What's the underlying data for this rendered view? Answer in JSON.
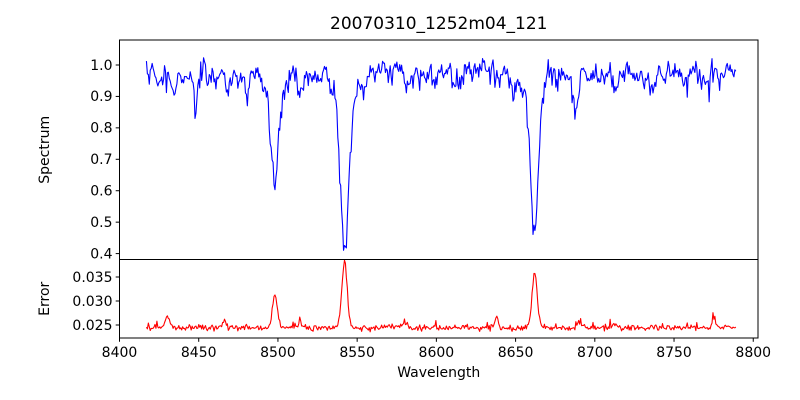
{
  "figure": {
    "background": "#ffffff",
    "axis_color": "#000000",
    "text_color": "#000000"
  },
  "chart_data": {
    "type": "line",
    "title": "20070310_1252m04_121",
    "xlabel": "Wavelength",
    "grid": false,
    "legend": "none",
    "xlim": [
      8400,
      8803
    ],
    "x_data_range": [
      8417,
      8789
    ],
    "xticks": [
      {
        "value": 8400,
        "label": "8400"
      },
      {
        "value": 8450,
        "label": "8450"
      },
      {
        "value": 8500,
        "label": "8500"
      },
      {
        "value": 8550,
        "label": "8550"
      },
      {
        "value": 8600,
        "label": "8600"
      },
      {
        "value": 8650,
        "label": "8650"
      },
      {
        "value": 8700,
        "label": "8700"
      },
      {
        "value": 8750,
        "label": "8750"
      },
      {
        "value": 8800,
        "label": "8800"
      }
    ],
    "n_points": 620,
    "noise_seed": 7,
    "panels": [
      {
        "name": "spectrum",
        "ylabel": "Spectrum",
        "ylim": [
          0.3812,
          1.0795
        ],
        "yticks": [
          {
            "value": 0.4,
            "label": "0.4"
          },
          {
            "value": 0.5,
            "label": "0.5"
          },
          {
            "value": 0.6,
            "label": "0.6"
          },
          {
            "value": 0.7,
            "label": "0.7"
          },
          {
            "value": 0.8,
            "label": "0.8"
          },
          {
            "value": 0.9,
            "label": "0.9"
          },
          {
            "value": 1.0,
            "label": "1.0"
          }
        ],
        "line_color": "#0000ff",
        "continuum": 0.98,
        "noise": {
          "smooth_amp": 0.012,
          "white_amp": 0.008,
          "spike_prob": 0.25,
          "spike_max": 0.05
        },
        "absorption_lines": [
          {
            "center": 8498,
            "depth": 0.3,
            "sigma": 2.0,
            "wing_depth": 0.08,
            "wing_sigma": 5.0
          },
          {
            "center": 8542,
            "depth": 0.44,
            "sigma": 2.3,
            "wing_depth": 0.12,
            "wing_sigma": 6.0
          },
          {
            "center": 8662,
            "depth": 0.41,
            "sigma": 2.2,
            "wing_depth": 0.11,
            "wing_sigma": 5.5
          },
          {
            "center": 8425,
            "depth": 0.04,
            "sigma": 1.2,
            "wing_depth": 0,
            "wing_sigma": 1
          },
          {
            "center": 8434,
            "depth": 0.07,
            "sigma": 1.5,
            "wing_depth": 0,
            "wing_sigma": 1
          },
          {
            "center": 8448,
            "depth": 0.085,
            "sigma": 1.6,
            "wing_depth": 0,
            "wing_sigma": 1
          },
          {
            "center": 8468,
            "depth": 0.05,
            "sigma": 1.3,
            "wing_depth": 0,
            "wing_sigma": 1
          },
          {
            "center": 8481,
            "depth": 0.045,
            "sigma": 1.2,
            "wing_depth": 0,
            "wing_sigma": 1
          },
          {
            "center": 8514,
            "depth": 0.08,
            "sigma": 1.5,
            "wing_depth": 0,
            "wing_sigma": 1
          },
          {
            "center": 8582,
            "depth": 0.045,
            "sigma": 1.2,
            "wing_depth": 0,
            "wing_sigma": 1
          },
          {
            "center": 8599,
            "depth": 0.05,
            "sigma": 1.3,
            "wing_depth": 0,
            "wing_sigma": 1
          },
          {
            "center": 8611,
            "depth": 0.055,
            "sigma": 1.3,
            "wing_depth": 0,
            "wing_sigma": 1
          },
          {
            "center": 8648,
            "depth": 0.045,
            "sigma": 1.2,
            "wing_depth": 0,
            "wing_sigma": 1
          },
          {
            "center": 8688,
            "depth": 0.115,
            "sigma": 1.7,
            "wing_depth": 0,
            "wing_sigma": 1
          },
          {
            "center": 8713,
            "depth": 0.055,
            "sigma": 1.3,
            "wing_depth": 0,
            "wing_sigma": 1
          },
          {
            "center": 8736,
            "depth": 0.06,
            "sigma": 1.4,
            "wing_depth": 0,
            "wing_sigma": 1
          },
          {
            "center": 8757,
            "depth": 0.05,
            "sigma": 1.3,
            "wing_depth": 0,
            "wing_sigma": 1
          },
          {
            "center": 8771,
            "depth": 0.04,
            "sigma": 1.2,
            "wing_depth": 0,
            "wing_sigma": 1
          }
        ]
      },
      {
        "name": "error",
        "ylabel": "Error",
        "ylim": [
          0.022292,
          0.038646
        ],
        "yticks": [
          {
            "value": 0.025,
            "label": "0.025"
          },
          {
            "value": 0.03,
            "label": "0.030"
          },
          {
            "value": 0.035,
            "label": "0.035"
          }
        ],
        "line_color": "#ff0000",
        "baseline": 0.0243,
        "noise": {
          "white_amp": 0.00028,
          "spike_prob": 0.07,
          "spike_max": 0.0012
        },
        "emission_peaks": [
          {
            "center": 8430,
            "height": 0.0022,
            "sigma": 1.4
          },
          {
            "center": 8466,
            "height": 0.0013,
            "sigma": 1.2
          },
          {
            "center": 8498,
            "height": 0.0068,
            "sigma": 1.5
          },
          {
            "center": 8514,
            "height": 0.0013,
            "sigma": 1.2
          },
          {
            "center": 8542,
            "height": 0.0136,
            "sigma": 1.7
          },
          {
            "center": 8580,
            "height": 0.0012,
            "sigma": 1.1
          },
          {
            "center": 8638,
            "height": 0.0022,
            "sigma": 0.9
          },
          {
            "center": 8662,
            "height": 0.0114,
            "sigma": 1.6
          },
          {
            "center": 8690,
            "height": 0.0013,
            "sigma": 1.1
          },
          {
            "center": 8713,
            "height": 0.0011,
            "sigma": 1.1
          },
          {
            "center": 8775,
            "height": 0.0022,
            "sigma": 0.9
          }
        ]
      }
    ]
  }
}
